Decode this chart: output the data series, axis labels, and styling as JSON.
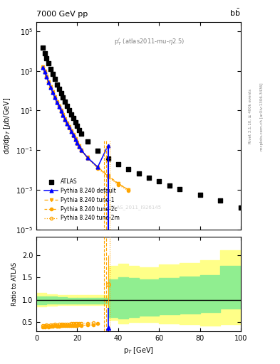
{
  "title_left": "7000 GeV pp",
  "title_right": "b$\\bar{b}$",
  "annotation": "p$_T^l$ (atlas2011-mu-η2.5)",
  "watermark": "ATLAS_2011_I926145",
  "ylabel_main": "d$\\sigma$/dp$_T$ [$\\mu$b/GeV]",
  "ylabel_ratio": "Ratio to ATLAS",
  "xlabel": "p$_T$ [GeV]",
  "xlim": [
    0,
    100
  ],
  "ylim_main": [
    1e-05,
    300000.0
  ],
  "ylim_ratio": [
    0.3,
    2.4
  ],
  "atlas_x": [
    3,
    4,
    5,
    6,
    7,
    8,
    9,
    10,
    11,
    12,
    13,
    14,
    15,
    16,
    17,
    18,
    19,
    20,
    21,
    22,
    25,
    30,
    35,
    40,
    45,
    50,
    55,
    60,
    65,
    70,
    80,
    90,
    100
  ],
  "atlas_y": [
    15000,
    8000,
    4500,
    2500,
    1300,
    700,
    380,
    210,
    125,
    75,
    45,
    27,
    17,
    10.5,
    6.5,
    4.1,
    2.6,
    1.65,
    1.05,
    0.68,
    0.28,
    0.095,
    0.038,
    0.019,
    0.011,
    0.0068,
    0.0042,
    0.0026,
    0.0016,
    0.0011,
    0.00055,
    0.00028,
    0.00013
  ],
  "py_default_x": [
    3,
    4,
    5,
    6,
    7,
    8,
    9,
    10,
    11,
    12,
    13,
    14,
    15,
    16,
    17,
    18,
    19,
    20,
    21,
    22,
    25,
    30,
    35
  ],
  "py_default_y": [
    1500,
    900,
    500,
    270,
    145,
    80,
    45,
    26,
    16,
    9.5,
    5.8,
    3.5,
    2.2,
    1.4,
    0.88,
    0.56,
    0.36,
    0.23,
    0.15,
    0.1,
    0.042,
    0.014,
    0.17
  ],
  "py_tune1_x": [
    3,
    4,
    5,
    6,
    7,
    8,
    9,
    10,
    11,
    12,
    13,
    14,
    15,
    16,
    17,
    18,
    19,
    20,
    21,
    22,
    25,
    30,
    35,
    40,
    45
  ],
  "py_tune1_y": [
    1600,
    950,
    530,
    285,
    155,
    86,
    48,
    28,
    17,
    10,
    6.2,
    3.8,
    2.35,
    1.5,
    0.96,
    0.61,
    0.39,
    0.25,
    0.16,
    0.105,
    0.043,
    0.014,
    0.0052,
    0.0021,
    0.001
  ],
  "py_tune2c_x": [
    3,
    4,
    5,
    6,
    7,
    8,
    9,
    10,
    11,
    12,
    13,
    14,
    15,
    16,
    17,
    18,
    19,
    20,
    21,
    22,
    25,
    30,
    35,
    40,
    45
  ],
  "py_tune2c_y": [
    1550,
    920,
    515,
    278,
    150,
    83,
    47,
    27,
    16.5,
    9.8,
    6.0,
    3.65,
    2.3,
    1.45,
    0.93,
    0.59,
    0.38,
    0.24,
    0.155,
    0.1,
    0.041,
    0.013,
    0.005,
    0.002,
    0.001
  ],
  "py_tune2m_x": [
    3,
    4,
    5,
    6,
    7,
    8,
    9,
    10,
    11,
    12,
    13,
    14,
    15,
    16,
    17,
    18,
    19,
    20,
    21,
    22,
    25,
    30,
    35,
    40,
    45
  ],
  "py_tune2m_y": [
    1500,
    890,
    495,
    268,
    145,
    80,
    45,
    26,
    15.5,
    9.2,
    5.6,
    3.4,
    2.1,
    1.35,
    0.86,
    0.55,
    0.35,
    0.22,
    0.14,
    0.092,
    0.038,
    0.012,
    0.0045,
    0.0018,
    0.0009
  ],
  "blue_vline_x": 35,
  "orange_vline_x": 35,
  "ratio_yellow_edges": [
    0,
    5,
    10,
    15,
    20,
    25,
    30,
    35,
    40,
    45,
    50,
    60,
    70,
    80,
    90,
    100
  ],
  "ratio_yellow_lo": [
    0.85,
    0.87,
    0.88,
    0.88,
    0.88,
    0.88,
    0.88,
    0.55,
    0.48,
    0.5,
    0.5,
    0.48,
    0.45,
    0.42,
    0.45,
    0.45
  ],
  "ratio_yellow_hi": [
    1.15,
    1.12,
    1.11,
    1.1,
    1.1,
    1.1,
    1.1,
    1.75,
    1.8,
    1.75,
    1.72,
    1.78,
    1.82,
    1.88,
    2.1,
    2.2
  ],
  "ratio_green_edges": [
    0,
    5,
    10,
    15,
    20,
    25,
    30,
    35,
    40,
    45,
    50,
    60,
    70,
    80,
    90,
    100
  ],
  "ratio_green_lo": [
    0.9,
    0.91,
    0.92,
    0.92,
    0.92,
    0.92,
    0.92,
    0.62,
    0.58,
    0.62,
    0.65,
    0.68,
    0.7,
    0.72,
    0.8,
    0.85
  ],
  "ratio_green_hi": [
    1.08,
    1.07,
    1.06,
    1.05,
    1.05,
    1.05,
    1.05,
    1.45,
    1.5,
    1.48,
    1.45,
    1.48,
    1.52,
    1.55,
    1.75,
    1.95
  ],
  "ratio_orange_filled_x": [
    3,
    4,
    5,
    6,
    7,
    8,
    9,
    10,
    11,
    12,
    13,
    14,
    15,
    16,
    17,
    18,
    19,
    20,
    21,
    22,
    25,
    28,
    30
  ],
  "ratio_orange_filled_y": [
    0.4,
    0.4,
    0.41,
    0.4,
    0.41,
    0.41,
    0.42,
    0.41,
    0.41,
    0.42,
    0.42,
    0.42,
    0.42,
    0.43,
    0.43,
    0.42,
    0.43,
    0.43,
    0.44,
    0.43,
    0.44,
    0.44,
    0.47
  ],
  "ratio_orange_open_x": [
    3,
    4,
    5,
    6,
    7,
    8,
    9,
    10,
    11,
    12,
    13,
    14,
    15,
    16,
    17,
    18,
    19,
    20,
    21,
    22,
    25,
    28
  ],
  "ratio_orange_open_y": [
    0.42,
    0.43,
    0.44,
    0.43,
    0.44,
    0.44,
    0.45,
    0.44,
    0.45,
    0.45,
    0.45,
    0.46,
    0.46,
    0.46,
    0.47,
    0.47,
    0.47,
    0.47,
    0.48,
    0.48,
    0.48,
    0.49
  ],
  "ratio_tune2m_x": [
    35
  ],
  "ratio_tune2m_y": [
    1.35
  ],
  "ratio_tune2m_yerr_lo": [
    0.55
  ],
  "ratio_tune2m_yerr_hi": [
    0.65
  ],
  "ratio_blue_x": [
    35
  ],
  "ratio_blue_y": [
    0.37
  ],
  "ratio_blue_yerr_lo": [
    0.1
  ],
  "ratio_blue_yerr_hi": [
    0.45
  ],
  "side_label": "Rivet 3.1.10, ≥ 400k events",
  "side_label2": "mcplots.cern.ch [arXiv:1306.3436]"
}
